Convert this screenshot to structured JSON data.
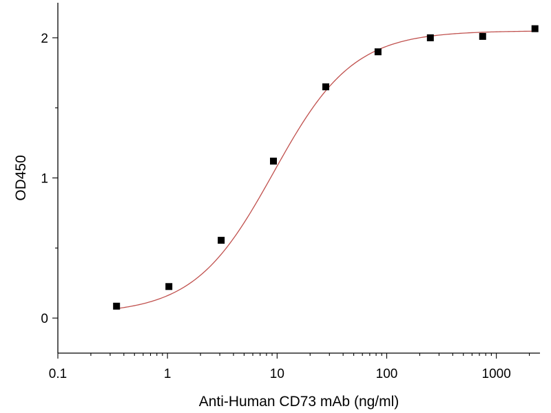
{
  "chart_data": {
    "type": "scatter",
    "title": "",
    "xlabel": "Anti-Human CD73 mAb (ng/ml)",
    "ylabel": "OD450",
    "x_scale": "log",
    "xlim": [
      0.1,
      2500
    ],
    "ylim": [
      -0.25,
      2.25
    ],
    "x_ticks": [
      0.1,
      1,
      10,
      100,
      1000
    ],
    "x_tick_labels": [
      "0.1",
      "1",
      "10",
      "100",
      "1000"
    ],
    "y_ticks": [
      0,
      1,
      2
    ],
    "y_tick_labels": [
      "0",
      "1",
      "2"
    ],
    "grid": false,
    "legend": "none",
    "series": [
      {
        "x": [
          0.343,
          1.03,
          3.09,
          9.26,
          27.8,
          83.3,
          250,
          750,
          2250
        ],
        "y": [
          0.085,
          0.225,
          0.555,
          1.12,
          1.65,
          1.9,
          2.0,
          2.01,
          2.065
        ],
        "marker": "square",
        "color": "#000000"
      }
    ],
    "fit": {
      "model": "4PL",
      "bottom": 0.03,
      "top": 2.05,
      "ec50": 9.3,
      "hill": 1.2,
      "color": "#c0504d"
    }
  }
}
